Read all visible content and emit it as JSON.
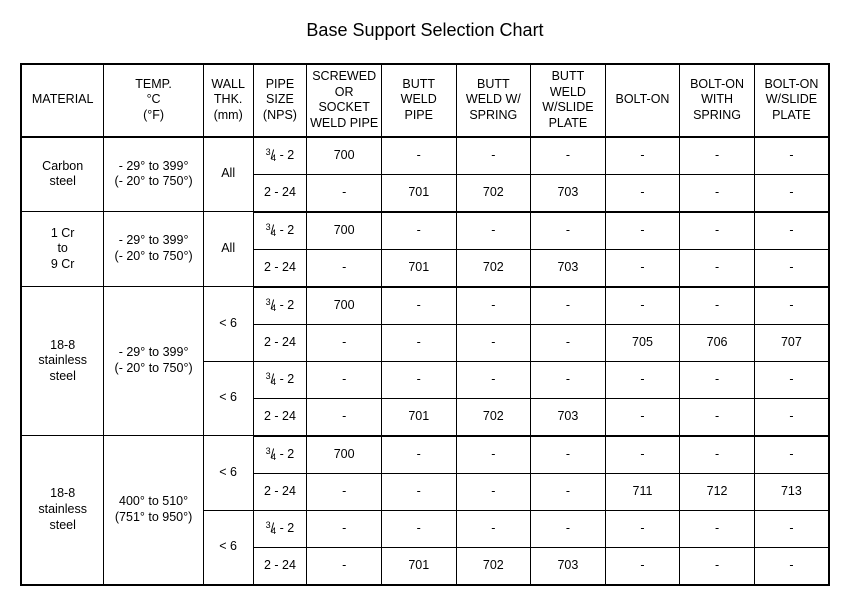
{
  "title": "Base Support Selection Chart",
  "headers": {
    "material": "MATERIAL",
    "temp": "TEMP.\n°C\n(°F)",
    "wall": "WALL\nTHK.\n(mm)",
    "pipe": "PIPE\nSIZE\n(NPS)",
    "c1": "SCREWED\nOR SOCKET\nWELD PIPE",
    "c2": "BUTT\nWELD\nPIPE",
    "c3": "BUTT\nWELD W/\nSPRING",
    "c4": "BUTT\nWELD\nW/SLIDE\nPLATE",
    "c5": "BOLT-ON",
    "c6": "BOLT-ON\nWITH\nSPRING",
    "c7": "BOLT-ON\nW/SLIDE\nPLATE"
  },
  "sections": [
    {
      "material": "Carbon\nsteel",
      "temp": "- 29° to 399°\n(- 20° to 750°)",
      "wall_groups": [
        {
          "wall": "All",
          "rows": [
            {
              "pipe": "3/4 - 2",
              "v": [
                "700",
                "-",
                "-",
                "-",
                "-",
                "-",
                "-"
              ]
            },
            {
              "pipe": "2 - 24",
              "v": [
                "-",
                "701",
                "702",
                "703",
                "-",
                "-",
                "-"
              ]
            }
          ]
        }
      ]
    },
    {
      "material": "1 Cr\nto\n9 Cr",
      "temp": "- 29° to 399°\n(- 20° to 750°)",
      "wall_groups": [
        {
          "wall": "All",
          "rows": [
            {
              "pipe": "3/4 - 2",
              "v": [
                "700",
                "-",
                "-",
                "-",
                "-",
                "-",
                "-"
              ]
            },
            {
              "pipe": "2 - 24",
              "v": [
                "-",
                "701",
                "702",
                "703",
                "-",
                "-",
                "-"
              ]
            }
          ]
        }
      ]
    },
    {
      "material": "18-8\nstainless\nsteel",
      "temp": "- 29° to 399°\n(- 20° to 750°)",
      "wall_groups": [
        {
          "wall": "< 6",
          "rows": [
            {
              "pipe": "3/4 - 2",
              "v": [
                "700",
                "-",
                "-",
                "-",
                "-",
                "-",
                "-"
              ]
            },
            {
              "pipe": "2 - 24",
              "v": [
                "-",
                "-",
                "-",
                "-",
                "705",
                "706",
                "707"
              ]
            }
          ]
        },
        {
          "wall": "< 6",
          "rows": [
            {
              "pipe": "3/4 - 2",
              "v": [
                "-",
                "-",
                "-",
                "-",
                "-",
                "-",
                "-"
              ]
            },
            {
              "pipe": "2 - 24",
              "v": [
                "-",
                "701",
                "702",
                "703",
                "-",
                "-",
                "-"
              ]
            }
          ]
        }
      ]
    },
    {
      "material": "18-8\nstainless\nsteel",
      "temp": "400° to 510°\n(751° to 950°)",
      "wall_groups": [
        {
          "wall": "< 6",
          "rows": [
            {
              "pipe": "3/4 - 2",
              "v": [
                "700",
                "-",
                "-",
                "-",
                "-",
                "-",
                "-"
              ]
            },
            {
              "pipe": "2 - 24",
              "v": [
                "-",
                "-",
                "-",
                "-",
                "711",
                "712",
                "713"
              ]
            }
          ]
        },
        {
          "wall": "< 6",
          "rows": [
            {
              "pipe": "3/4 - 2",
              "v": [
                "-",
                "-",
                "-",
                "-",
                "-",
                "-",
                "-"
              ]
            },
            {
              "pipe": "2 - 24",
              "v": [
                "-",
                "701",
                "702",
                "703",
                "-",
                "-",
                "-"
              ]
            }
          ]
        }
      ]
    }
  ]
}
